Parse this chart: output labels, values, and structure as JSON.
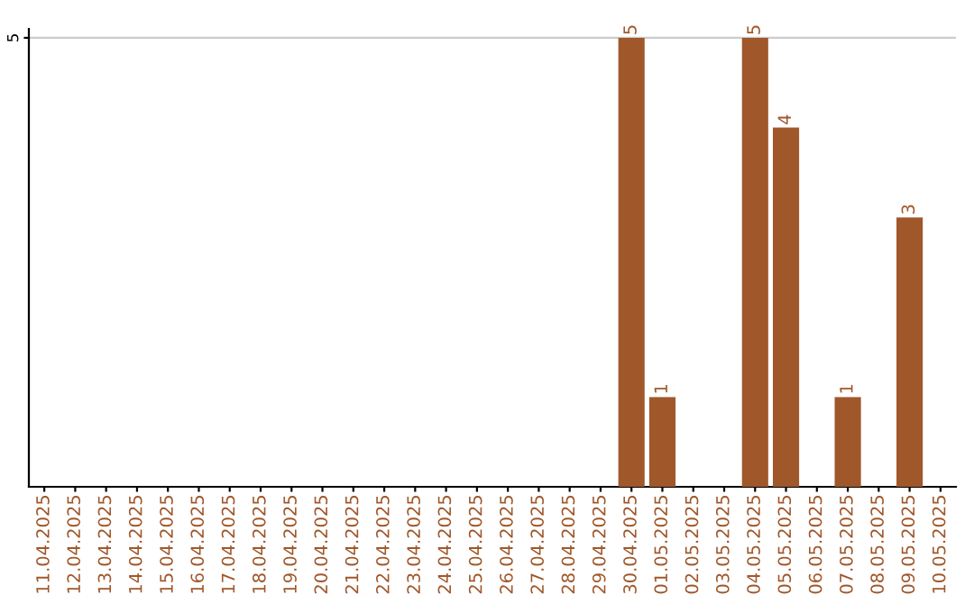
{
  "chart_data": {
    "type": "bar",
    "categories": [
      "11.04.2025",
      "12.04.2025",
      "13.04.2025",
      "14.04.2025",
      "15.04.2025",
      "16.04.2025",
      "17.04.2025",
      "18.04.2025",
      "19.04.2025",
      "20.04.2025",
      "21.04.2025",
      "22.04.2025",
      "23.04.2025",
      "24.04.2025",
      "25.04.2025",
      "26.04.2025",
      "27.04.2025",
      "28.04.2025",
      "29.04.2025",
      "30.04.2025",
      "01.05.2025",
      "02.05.2025",
      "03.05.2025",
      "04.05.2025",
      "05.05.2025",
      "06.05.2025",
      "07.05.2025",
      "08.05.2025",
      "09.05.2025",
      "10.05.2025"
    ],
    "values": [
      null,
      null,
      null,
      null,
      null,
      null,
      null,
      null,
      null,
      null,
      null,
      null,
      null,
      null,
      null,
      null,
      null,
      null,
      null,
      5,
      1,
      null,
      null,
      5,
      4,
      null,
      1,
      null,
      3,
      null
    ],
    "color": "#a0572a",
    "ylim": [
      0,
      5.1
    ],
    "yticks": [
      5
    ],
    "grid": "y",
    "data_labels": true
  }
}
